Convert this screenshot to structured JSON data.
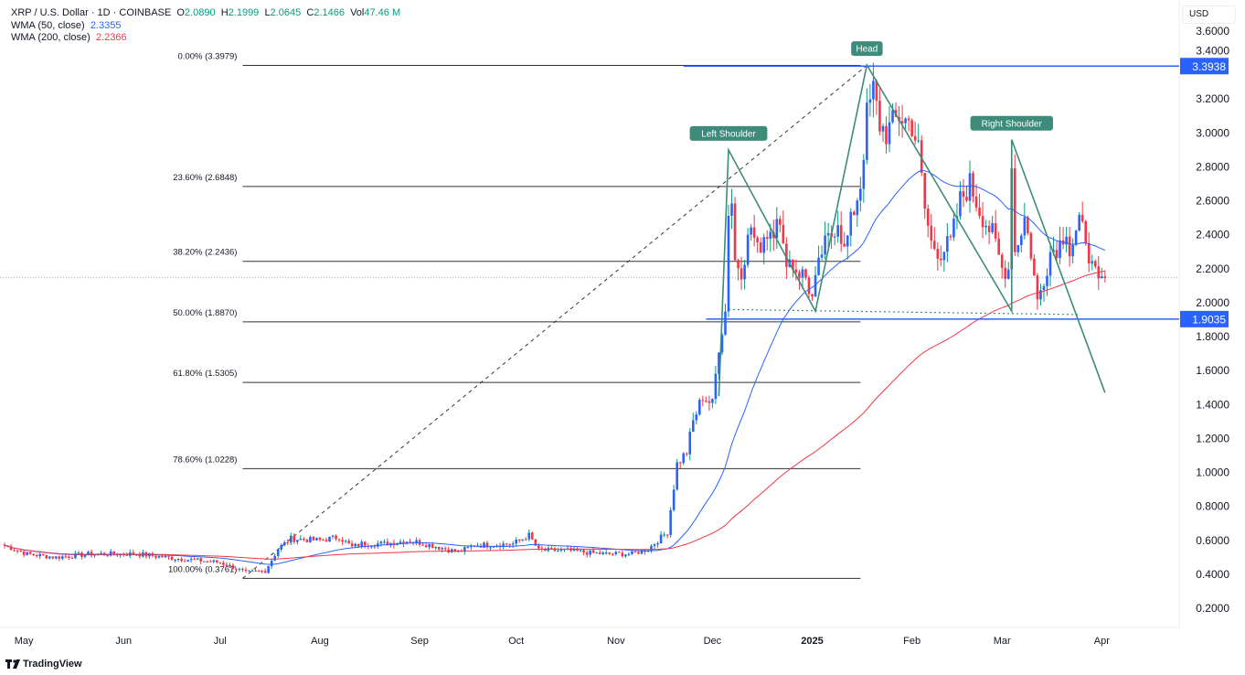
{
  "legend": {
    "symbol": "XRP / U.S. Dollar · 1D · COINBASE",
    "o_label": "O",
    "o": "2.0890",
    "h_label": "H",
    "h": "2.1999",
    "l_label": "L",
    "l": "2.0645",
    "c_label": "C",
    "c": "2.1466",
    "vol_label": "Vol",
    "vol": "47.46 M",
    "wma50_label": "WMA (50, close)",
    "wma50": "2.3355",
    "wma200_label": "WMA (200, close)",
    "wma200": "2.2366"
  },
  "currency": "USD",
  "logo": "TradingView",
  "colors": {
    "up_body": "#2962ff",
    "up_wick": "#089981",
    "down": "#f23645",
    "wma50": "#2962ff",
    "wma200": "#f23645",
    "pattern": "#3d8b7a",
    "hline": "#2962ff"
  },
  "chart_data": {
    "type": "candlestick",
    "title": "XRP / U.S. Dollar · 1D · COINBASE",
    "ylim": [
      0.1,
      3.7
    ],
    "y_ticks": [
      "3.6000",
      "3.4000",
      "3.2000",
      "3.0000",
      "2.8000",
      "2.6000",
      "2.4000",
      "2.2000",
      "2.0000",
      "1.8000",
      "1.6000",
      "1.4000",
      "1.2000",
      "1.0000",
      "0.8000",
      "0.6000",
      "0.4000",
      "0.2000"
    ],
    "x_start": "2024-04-25",
    "x_ticks": [
      {
        "label": "May",
        "day": 6
      },
      {
        "label": "Jun",
        "day": 37
      },
      {
        "label": "Jul",
        "day": 67
      },
      {
        "label": "Aug",
        "day": 98
      },
      {
        "label": "Sep",
        "day": 129
      },
      {
        "label": "Oct",
        "day": 159
      },
      {
        "label": "Nov",
        "day": 190
      },
      {
        "label": "Dec",
        "day": 220
      },
      {
        "label": "2025",
        "day": 251,
        "bold": true
      },
      {
        "label": "Feb",
        "day": 282
      },
      {
        "label": "Mar",
        "day": 310
      },
      {
        "label": "Apr",
        "day": 341
      }
    ],
    "close_path": [
      [
        0,
        0.57
      ],
      [
        7,
        0.52
      ],
      [
        16,
        0.5
      ],
      [
        27,
        0.52
      ],
      [
        41,
        0.52
      ],
      [
        55,
        0.49
      ],
      [
        67,
        0.47
      ],
      [
        75,
        0.41
      ],
      [
        81,
        0.42
      ],
      [
        85,
        0.55
      ],
      [
        89,
        0.61
      ],
      [
        98,
        0.6
      ],
      [
        104,
        0.62
      ],
      [
        108,
        0.56
      ],
      [
        111,
        0.58
      ],
      [
        118,
        0.58
      ],
      [
        126,
        0.6
      ],
      [
        135,
        0.56
      ],
      [
        141,
        0.53
      ],
      [
        146,
        0.57
      ],
      [
        158,
        0.58
      ],
      [
        163,
        0.63
      ],
      [
        166,
        0.54
      ],
      [
        175,
        0.54
      ],
      [
        186,
        0.52
      ],
      [
        195,
        0.52
      ],
      [
        200,
        0.55
      ],
      [
        206,
        0.65
      ],
      [
        209,
        1.05
      ],
      [
        212,
        1.12
      ],
      [
        214,
        1.3
      ],
      [
        217,
        1.45
      ],
      [
        220,
        1.4
      ],
      [
        222,
        1.75
      ],
      [
        224,
        1.95
      ],
      [
        225,
        2.55
      ],
      [
        226,
        2.6
      ],
      [
        227,
        2.25
      ],
      [
        229,
        2.2
      ],
      [
        232,
        2.45
      ],
      [
        234,
        2.3
      ],
      [
        236,
        2.4
      ],
      [
        239,
        2.45
      ],
      [
        240,
        2.55
      ],
      [
        242,
        2.3
      ],
      [
        246,
        2.2
      ],
      [
        249,
        2.15
      ],
      [
        251,
        2.02
      ],
      [
        254,
        2.3
      ],
      [
        257,
        2.4
      ],
      [
        259,
        2.5
      ],
      [
        261,
        2.3
      ],
      [
        264,
        2.55
      ],
      [
        266,
        2.7
      ],
      [
        268,
        3.1
      ],
      [
        270,
        3.25
      ],
      [
        272,
        3.05
      ],
      [
        274,
        3.0
      ],
      [
        278,
        3.1
      ],
      [
        282,
        3.05
      ],
      [
        284,
        2.9
      ],
      [
        286,
        2.55
      ],
      [
        288,
        2.35
      ],
      [
        291,
        2.3
      ],
      [
        294,
        2.35
      ],
      [
        297,
        2.6
      ],
      [
        300,
        2.7
      ],
      [
        303,
        2.55
      ],
      [
        307,
        2.4
      ],
      [
        310,
        2.2
      ],
      [
        312,
        2.2
      ],
      [
        313,
        2.85
      ],
      [
        314,
        2.3
      ],
      [
        317,
        2.5
      ],
      [
        319,
        2.3
      ],
      [
        321,
        2.0
      ],
      [
        323,
        2.15
      ],
      [
        325,
        2.3
      ],
      [
        328,
        2.35
      ],
      [
        330,
        2.45
      ],
      [
        331,
        2.3
      ],
      [
        334,
        2.45
      ],
      [
        336,
        2.4
      ],
      [
        338,
        2.2
      ],
      [
        340,
        2.1
      ],
      [
        342,
        2.1466
      ]
    ],
    "series": [
      {
        "name": "WMA (50, close)",
        "last": 2.3355
      },
      {
        "name": "WMA (200, close)",
        "last": 2.2366
      }
    ],
    "fib": [
      {
        "label": "0.00% (3.3979)",
        "price": 3.3979
      },
      {
        "label": "23.60% (2.6848)",
        "price": 2.6848
      },
      {
        "label": "38.20% (2.2436)",
        "price": 2.2436
      },
      {
        "label": "50.00% (1.8870)",
        "price": 1.887
      },
      {
        "label": "61.80% (1.5305)",
        "price": 1.5305
      },
      {
        "label": "78.60% (1.0228)",
        "price": 1.0228
      },
      {
        "label": "100.00% (0.3761)",
        "price": 0.3761
      }
    ],
    "fib_range": {
      "from_day": 74,
      "to_day": 266
    },
    "pattern": {
      "points": [
        [
          222,
          1.45
        ],
        [
          225,
          2.9
        ],
        [
          252,
          1.95
        ],
        [
          268,
          3.4
        ],
        [
          313,
          1.95
        ],
        [
          313,
          2.96
        ],
        [
          342,
          1.47
        ]
      ],
      "labels": [
        {
          "text": "Left Shoulder",
          "day": 225,
          "price": 2.9
        },
        {
          "text": "Head",
          "day": 268,
          "price": 3.4
        },
        {
          "text": "Right Shoulder",
          "day": 313,
          "price": 2.96
        }
      ],
      "neckline": [
        [
          225,
          1.96
        ],
        [
          334,
          1.93
        ]
      ]
    },
    "hlines": [
      {
        "label": "3.3938",
        "price": 3.3938,
        "from_day": 211
      },
      {
        "label": "1.9035",
        "price": 1.9035,
        "from_day": 218
      }
    ],
    "current_price": 2.1466
  }
}
